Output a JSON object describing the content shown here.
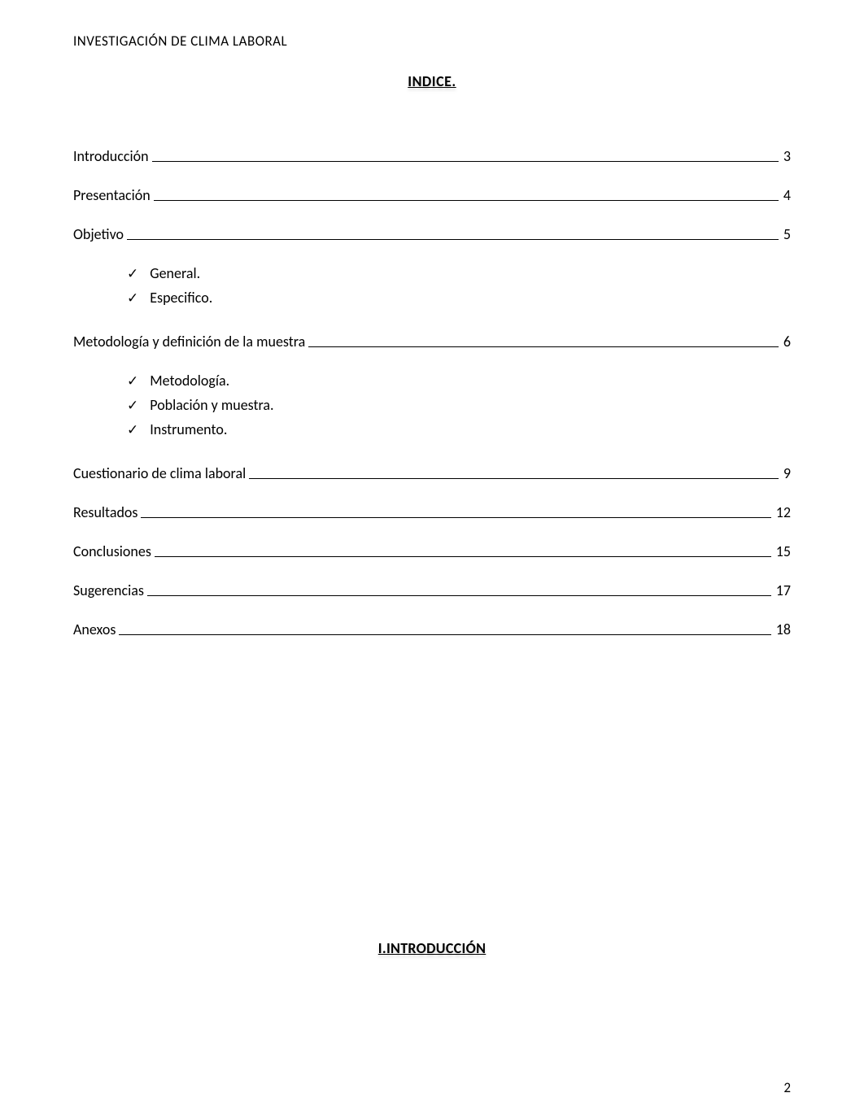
{
  "header": "INVESTIGACIÓN DE CLIMA LABORAL",
  "title": "INDICE.",
  "toc": {
    "introduccion": {
      "label": "Introducción",
      "page": "3"
    },
    "presentacion": {
      "label": "Presentación",
      "page": "4"
    },
    "objetivo": {
      "label": "Objetivo",
      "page": "5"
    },
    "objetivo_sub": {
      "general": "General.",
      "especifico": "Especifico."
    },
    "metodologia_def": {
      "label": "Metodología y definición de la muestra",
      "page": "6"
    },
    "metodologia_sub": {
      "metodologia": "Metodología.",
      "poblacion": "Población y muestra.",
      "instrumento": "Instrumento."
    },
    "cuestionario": {
      "label": "Cuestionario de clima laboral",
      "page": "9"
    },
    "resultados": {
      "label": "Resultados",
      "page": "12"
    },
    "conclusiones": {
      "label": "Conclusiones",
      "page": "15"
    },
    "sugerencias": {
      "label": "Sugerencias",
      "page": "17"
    },
    "anexos": {
      "label": "Anexos",
      "page": "18"
    }
  },
  "section_heading": "I.INTRODUCCIÓN",
  "page_number": "2",
  "checkmark": "✓"
}
